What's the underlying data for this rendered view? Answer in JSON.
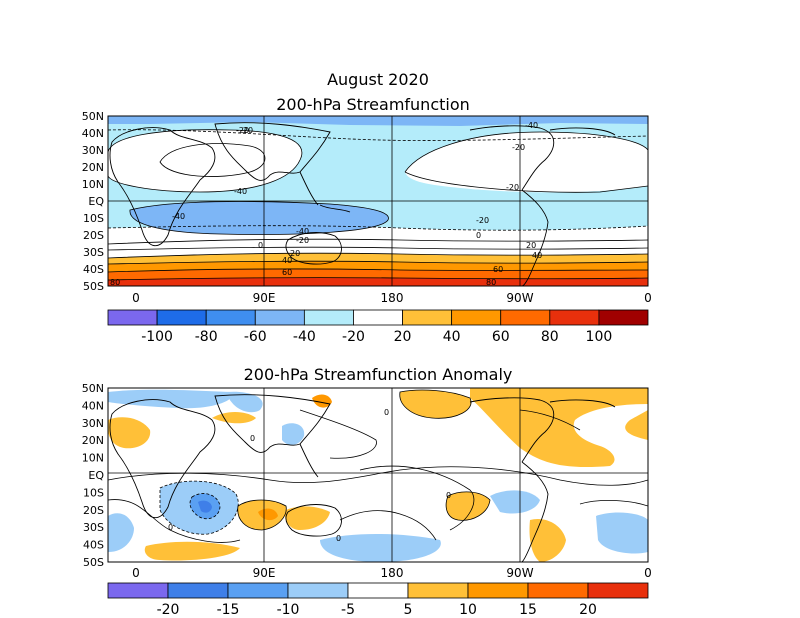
{
  "figure": {
    "title": "August 2020"
  },
  "maps": [
    {
      "id": "streamfunction",
      "title": "200-hPa Streamfunction",
      "lat_labels": [
        "50N",
        "40N",
        "30N",
        "20N",
        "10N",
        "EQ",
        "10S",
        "20S",
        "30S",
        "40S",
        "50S"
      ],
      "lon_labels": [
        "0",
        "90E",
        "180",
        "90W",
        "0"
      ],
      "colorbar": {
        "labels": [
          "-100",
          "-80",
          "-60",
          "-40",
          "-20",
          "20",
          "40",
          "60",
          "80",
          "100"
        ],
        "colors": [
          "#7b68ee",
          "#1e6ce8",
          "#3f8ef0",
          "#7db6f6",
          "#b4ecfa",
          "#ffffff",
          "#ffc038",
          "#ff9800",
          "#ff6a00",
          "#e8300c",
          "#a00000"
        ]
      },
      "contour_labels": [
        "-40",
        "-20",
        "-20",
        "-20",
        "-40",
        "-40",
        "-20",
        "-20",
        "0",
        "-40",
        "-20",
        "20",
        "40",
        "60",
        "0",
        "20",
        "40",
        "60",
        "80",
        "80"
      ]
    },
    {
      "id": "anomaly",
      "title": "200-hPa Streamfunction Anomaly",
      "lat_labels": [
        "50N",
        "40N",
        "30N",
        "20N",
        "10N",
        "EQ",
        "10S",
        "20S",
        "30S",
        "40S",
        "50S"
      ],
      "lon_labels": [
        "0",
        "90E",
        "180",
        "90W",
        "0"
      ],
      "colorbar": {
        "labels": [
          "-20",
          "-15",
          "-10",
          "-5",
          "5",
          "10",
          "15",
          "20"
        ],
        "colors": [
          "#7b68ee",
          "#3f7fe8",
          "#5aa0f2",
          "#9ccdf8",
          "#ffffff",
          "#ffc038",
          "#ff9800",
          "#ff6a00",
          "#e8300c"
        ]
      },
      "contour_labels": [
        "0",
        "0",
        "0",
        "0",
        "0"
      ]
    }
  ]
}
